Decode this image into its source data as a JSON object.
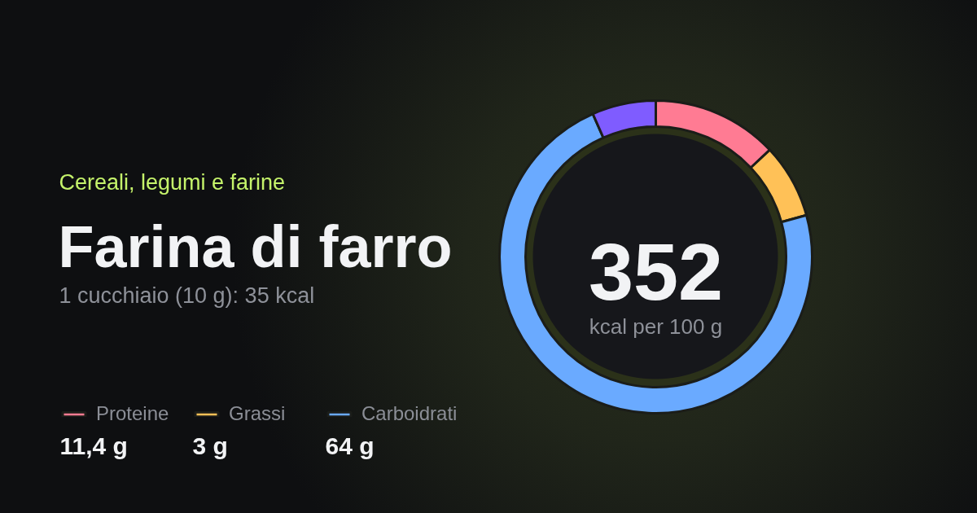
{
  "chart_data": {
    "type": "donut",
    "title": "Farina di farro",
    "subtitle": "1 cucchiaio (10 g): 35 kcal",
    "categories": [
      "Proteine",
      "Grassi",
      "Carboidrati",
      null
    ],
    "values": [
      13,
      7.7,
      72.7,
      6.6
    ],
    "colors": [
      "#ff7b93",
      "#ffc157",
      "#6aaaff",
      "#7f5cff"
    ],
    "legend": "bottom left",
    "annotations": [
      "Cereali, legumi e farine",
      "352",
      "kcal per 100 g",
      "11,4 g",
      "3 g",
      "64 g"
    ]
  }
}
